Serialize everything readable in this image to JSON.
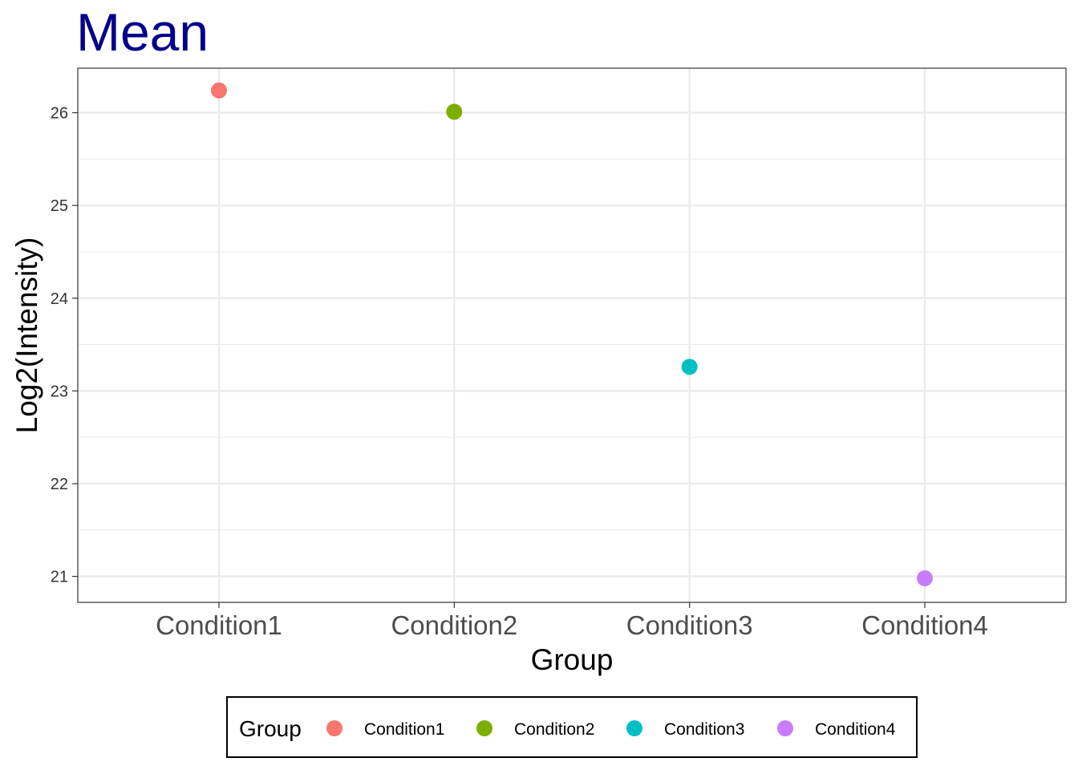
{
  "chart_data": {
    "type": "scatter",
    "title": "Mean",
    "xlabel": "Group",
    "ylabel": "Log2(Intensity)",
    "categories": [
      "Condition1",
      "Condition2",
      "Condition3",
      "Condition4"
    ],
    "values": [
      26.24,
      26.01,
      23.26,
      20.98
    ],
    "ylim": [
      20.72,
      26.48
    ],
    "yticks": [
      21,
      22,
      23,
      24,
      25,
      26
    ],
    "ytick_labels": [
      "21",
      "22",
      "23",
      "24",
      "25",
      "26"
    ],
    "grid": true,
    "legend": {
      "title": "Group",
      "position": "bottom",
      "entries": [
        "Condition1",
        "Condition2",
        "Condition3",
        "Condition4"
      ]
    }
  },
  "colors": {
    "Condition1": "#f8766d",
    "Condition2": "#7cae00",
    "Condition3": "#00bfc4",
    "Condition4": "#c77cff",
    "title": "#00008b",
    "grid": "#ebebeb"
  }
}
